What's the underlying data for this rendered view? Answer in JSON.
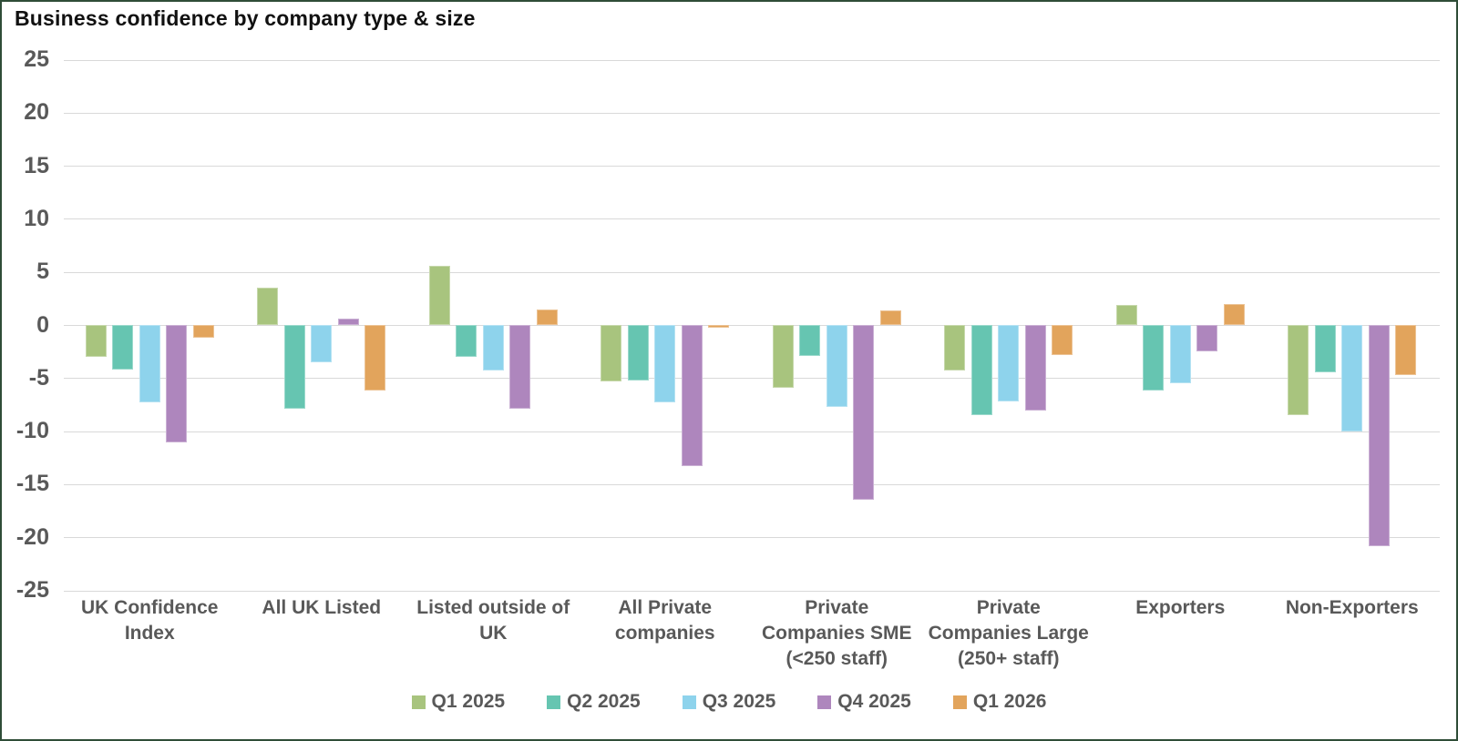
{
  "window": {
    "border_color": "#2f4d38",
    "background": "#ffffff"
  },
  "chart_data": {
    "type": "bar",
    "title": "Business confidence by company type & size",
    "xlabel": "",
    "ylabel": "",
    "ylim": [
      -25,
      25
    ],
    "yticks": [
      25,
      20,
      15,
      10,
      5,
      0,
      -5,
      -10,
      -15,
      -20,
      -25
    ],
    "grid": true,
    "legend_position": "bottom-center",
    "title_color": "#111111",
    "axis_text_color": "#595959",
    "gridline_color": "#d9d9d9",
    "categories": [
      "UK Confidence Index",
      "All UK Listed",
      "Listed outside of UK",
      "All Private companies",
      "Private Companies SME (<250 staff)",
      "Private Companies Large (250+ staff)",
      "Exporters",
      "Non-Exporters"
    ],
    "category_label_lines": [
      [
        "UK Confidence",
        "Index"
      ],
      [
        "All UK Listed"
      ],
      [
        "Listed outside of",
        "UK"
      ],
      [
        "All Private",
        "companies"
      ],
      [
        "Private",
        "Companies SME",
        "(<250 staff)"
      ],
      [
        "Private",
        "Companies Large",
        "(250+ staff)"
      ],
      [
        "Exporters"
      ],
      [
        "Non-Exporters"
      ]
    ],
    "series": [
      {
        "name": "Q1 2025",
        "color": "#a8c47e",
        "values": [
          -3.0,
          3.5,
          5.6,
          -5.3,
          -5.9,
          -4.3,
          1.9,
          -8.5
        ]
      },
      {
        "name": "Q2 2025",
        "color": "#66c5b1",
        "values": [
          -4.2,
          -7.9,
          -3.0,
          -5.2,
          -2.9,
          -8.5,
          -6.2,
          -4.5
        ]
      },
      {
        "name": "Q3 2025",
        "color": "#8ed3ec",
        "values": [
          -7.3,
          -3.5,
          -4.3,
          -7.3,
          -7.7,
          -7.2,
          -5.5,
          -10.0
        ]
      },
      {
        "name": "Q4 2025",
        "color": "#ae86bd",
        "values": [
          -11.1,
          0.6,
          -7.9,
          -13.3,
          -16.5,
          -8.1,
          -2.5,
          -20.8
        ]
      },
      {
        "name": "Q1 2026",
        "color": "#e2a45c",
        "values": [
          -1.2,
          -6.2,
          1.5,
          -0.3,
          1.4,
          -2.8,
          2.0,
          -4.7
        ]
      }
    ]
  }
}
